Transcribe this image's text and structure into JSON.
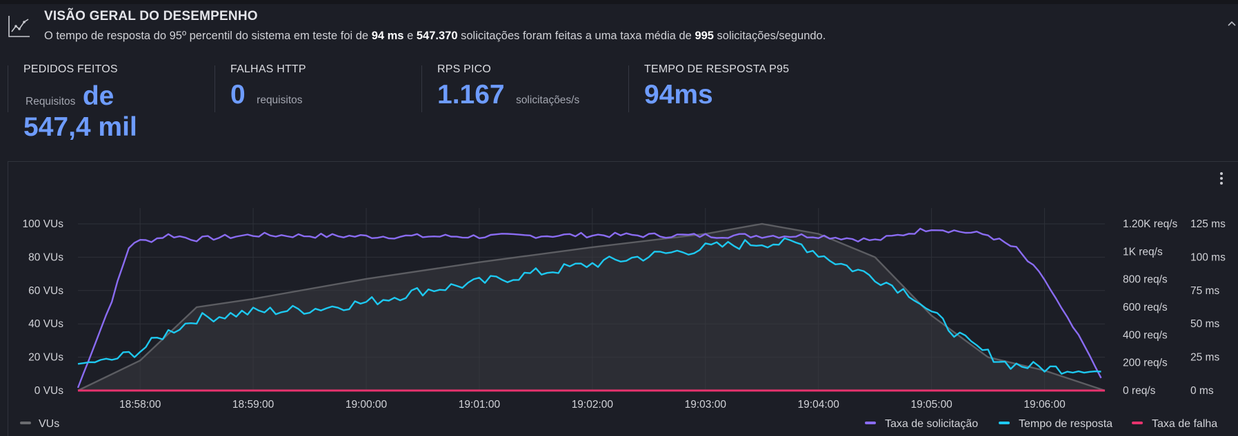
{
  "header": {
    "title": "VISÃO GERAL DO DESEMPENHO",
    "desc_part1": "O tempo de resposta do 95º percentil do sistema em teste foi de ",
    "desc_p95": "94 ms",
    "desc_part2": " e ",
    "desc_requests": "547.370",
    "desc_part3": " solicitações foram feitas a uma taxa média de ",
    "desc_rate": "995",
    "desc_part4": " solicitações/segundo."
  },
  "stats": {
    "requests": {
      "label": "PEDIDOS FEITOS",
      "unit": "Requisitos",
      "value_part1": "de",
      "value_part2": "547,4 mil"
    },
    "failures": {
      "label": "FALHAS HTTP",
      "value": "0",
      "unit": "requisitos"
    },
    "peak_rps": {
      "label": "RPS PICO",
      "value": "1.167",
      "unit": "solicitações/s"
    },
    "p95": {
      "label": "TEMPO DE RESPOSTA P95",
      "value": "94ms"
    }
  },
  "colors": {
    "accent": "#6e9cff",
    "vus": "#6a6b70",
    "request_rate": "#8a6cf2",
    "response_time": "#1ec8f0",
    "failure_rate": "#e8336e"
  },
  "chart_data": {
    "type": "line",
    "x_ticks": [
      "18:58:00",
      "18:59:00",
      "19:00:00",
      "19:01:00",
      "19:02:00",
      "19:03:00",
      "19:04:00",
      "19:05:00",
      "19:06:00"
    ],
    "x_range": [
      "18:57:27",
      "19:06:32"
    ],
    "y_left_ticks": [
      "0 VUs",
      "20 VUs",
      "40 VUs",
      "60 VUs",
      "80 VUs",
      "100 VUs"
    ],
    "y_left_range": [
      0,
      100
    ],
    "y_req_ticks": [
      "0 req/s",
      "200 req/s",
      "400 req/s",
      "600 req/s",
      "800 req/s",
      "1K req/s",
      "1.20K req/s"
    ],
    "y_req_range": [
      0,
      1200
    ],
    "y_ms_ticks": [
      "0 ms",
      "25 ms",
      "50 ms",
      "75 ms",
      "100 ms",
      "125 ms"
    ],
    "y_ms_range": [
      0,
      125
    ],
    "grid": true,
    "series": [
      {
        "name": "VUs",
        "axis": "vus",
        "x": [
          "18:57:27",
          "18:58:00",
          "18:58:30",
          "18:59:00",
          "19:00:00",
          "19:01:00",
          "19:02:00",
          "19:03:00",
          "19:03:30",
          "19:04:00",
          "19:04:30",
          "19:05:00",
          "19:05:30",
          "19:06:00",
          "19:06:32"
        ],
        "y": [
          0,
          18,
          50,
          55,
          67,
          77,
          86,
          94,
          100,
          94,
          80,
          45,
          20,
          12,
          0
        ]
      },
      {
        "name": "Taxa de solicitação",
        "axis": "req",
        "x": [
          "18:57:27",
          "18:57:35",
          "18:57:45",
          "18:57:55",
          "18:58:05",
          "18:58:15",
          "18:58:30",
          "18:59:00",
          "19:00:00",
          "19:01:00",
          "19:02:00",
          "19:03:00",
          "19:04:00",
          "19:04:30",
          "19:05:00",
          "19:05:30",
          "19:05:45",
          "19:06:00",
          "19:06:10",
          "19:06:20",
          "19:06:32"
        ],
        "y": [
          20,
          300,
          650,
          1070,
          1080,
          1120,
          1090,
          1120,
          1110,
          1110,
          1120,
          1115,
          1115,
          1080,
          1170,
          1120,
          1020,
          800,
          560,
          350,
          40
        ]
      },
      {
        "name": "Tempo de resposta",
        "axis": "ms",
        "x": [
          "18:57:27",
          "18:57:45",
          "18:58:00",
          "18:58:15",
          "18:58:30",
          "18:59:00",
          "18:59:30",
          "19:00:00",
          "19:00:30",
          "19:01:00",
          "19:01:30",
          "19:02:00",
          "19:02:30",
          "19:03:00",
          "19:03:30",
          "19:03:50",
          "19:04:00",
          "19:04:10",
          "19:04:30",
          "19:04:50",
          "19:05:00",
          "19:05:20",
          "19:05:40",
          "19:06:00",
          "19:06:20",
          "19:06:32"
        ],
        "y": [
          20,
          23,
          30,
          44,
          54,
          59,
          61,
          66,
          75,
          81,
          88,
          95,
          101,
          107,
          111,
          110,
          103,
          96,
          85,
          72,
          58,
          35,
          20,
          17,
          15,
          14
        ]
      },
      {
        "name": "Taxa de falha",
        "axis": "req",
        "x": [
          "18:57:27",
          "19:06:32"
        ],
        "y": [
          0,
          0
        ]
      }
    ],
    "legend": [
      "VUs",
      "Taxa de solicitação",
      "Tempo de resposta",
      "Taxa de falha"
    ]
  }
}
